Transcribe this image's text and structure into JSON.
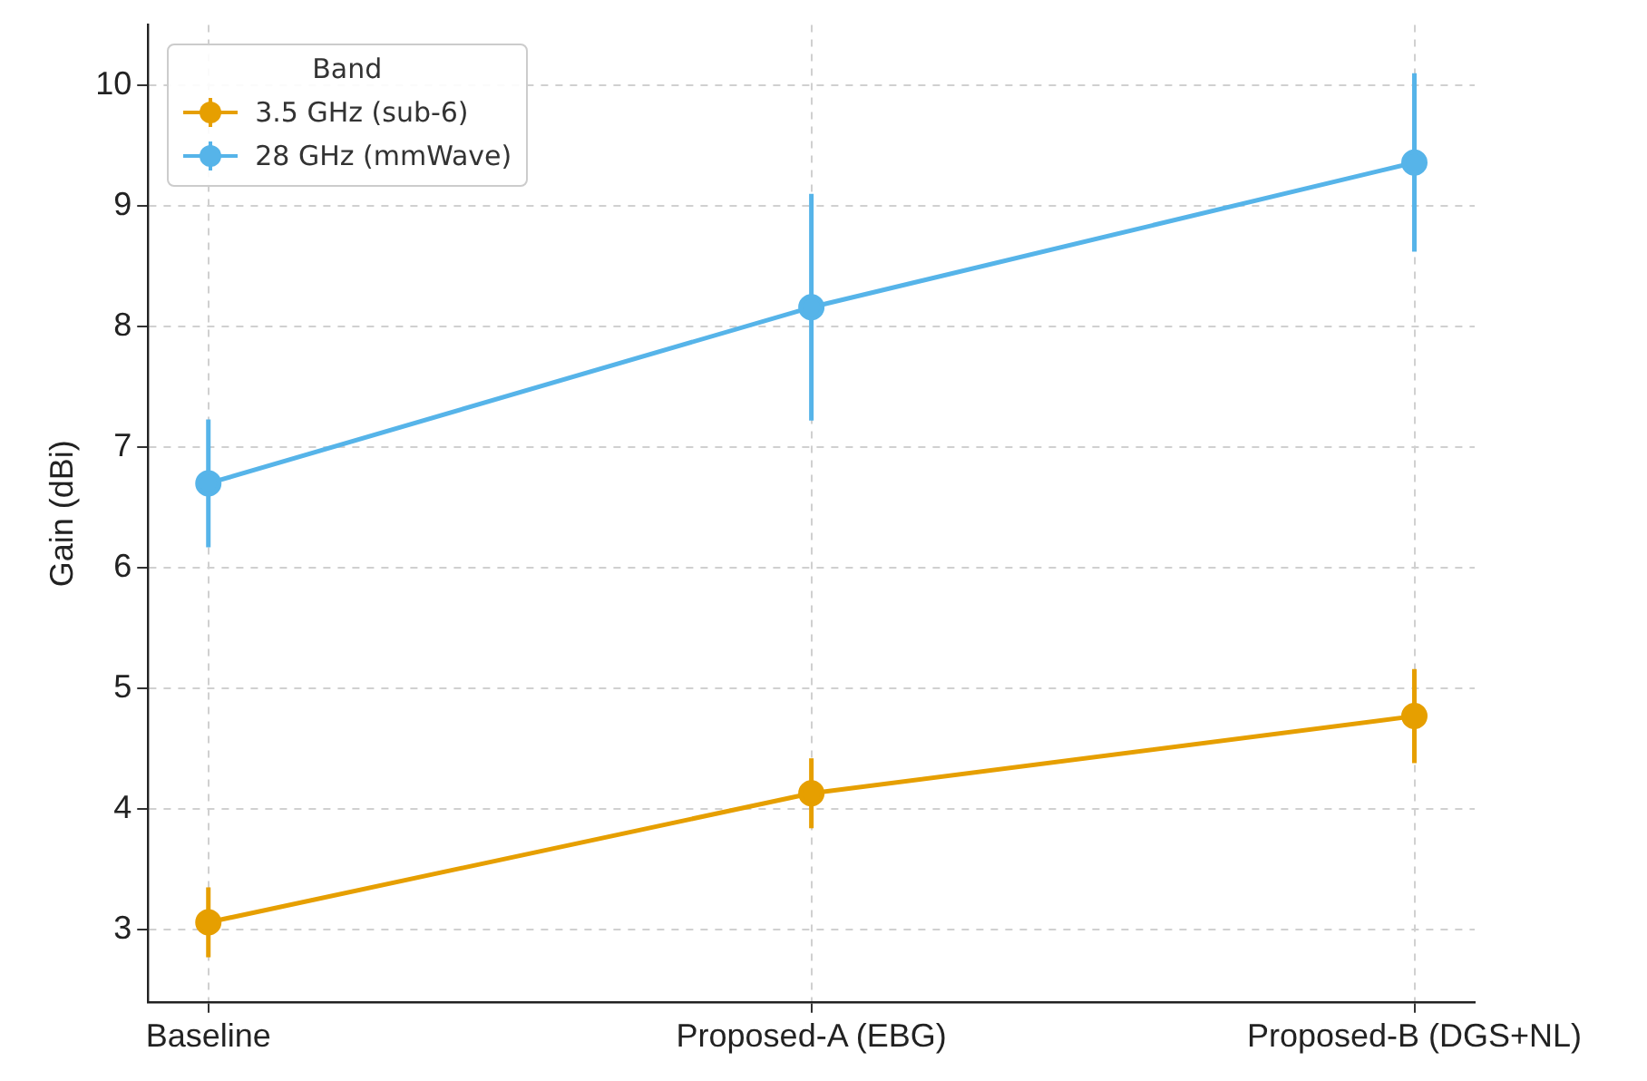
{
  "chart_data": {
    "type": "line",
    "ylabel": "Gain (dBi)",
    "categories": [
      "Baseline",
      "Proposed-A (EBG)",
      "Proposed-B (DGS+NL)"
    ],
    "series": [
      {
        "name": "3.5 GHz (sub-6)",
        "color": "#e69f00",
        "values": [
          3.06,
          4.13,
          4.77
        ],
        "errors": [
          0.29,
          0.29,
          0.39
        ]
      },
      {
        "name": "28 GHz (mmWave)",
        "color": "#56b4e9",
        "values": [
          6.7,
          8.16,
          9.36
        ],
        "errors": [
          0.53,
          0.94,
          0.74
        ]
      }
    ],
    "ylim": [
      2.4,
      10.5
    ],
    "yticks": [
      3,
      4,
      5,
      6,
      7,
      8,
      9,
      10
    ],
    "grid": true,
    "legend": "top left",
    "legend_title": "Band",
    "marker": "circle",
    "line_style": "solid"
  }
}
